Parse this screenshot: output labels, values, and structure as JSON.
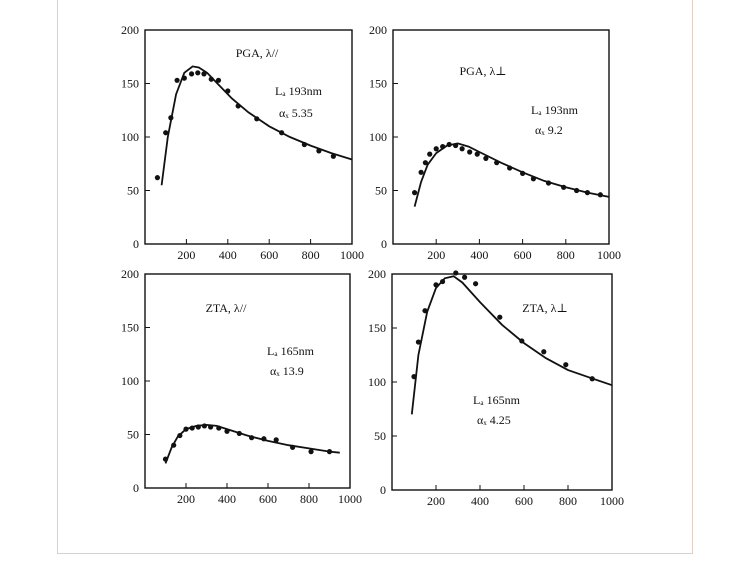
{
  "chart_data": [
    {
      "type": "scatter",
      "title": "PGA, λ//",
      "annotations": [
        "Lₐ 193nm",
        "αₓ 5.35"
      ],
      "xlim": [
        0,
        1000
      ],
      "ylim": [
        0,
        200
      ],
      "x_ticks": [
        200,
        400,
        600,
        800,
        1000
      ],
      "y_ticks": [
        0,
        50,
        100,
        150,
        200
      ],
      "points": {
        "x": [
          60,
          100,
          125,
          155,
          190,
          225,
          255,
          285,
          320,
          355,
          400,
          450,
          540,
          660,
          770,
          840,
          910
        ],
        "y": [
          62,
          104,
          118,
          153,
          155,
          159,
          160,
          159,
          154,
          153,
          143,
          129,
          117,
          104,
          93,
          87,
          82
        ]
      },
      "fit": {
        "x": [
          80,
          110,
          150,
          190,
          230,
          260,
          300,
          350,
          420,
          500,
          600,
          700,
          800,
          900,
          1000
        ],
        "y": [
          55,
          100,
          140,
          160,
          166,
          165,
          160,
          150,
          136,
          123,
          110,
          100,
          92,
          85,
          79
        ]
      }
    },
    {
      "type": "scatter",
      "title": "PGA, λ⊥",
      "annotations": [
        "Lₐ 193nm",
        "αₓ 9.2"
      ],
      "xlim": [
        0,
        1000
      ],
      "ylim": [
        0,
        200
      ],
      "x_ticks": [
        200,
        400,
        600,
        800,
        1000
      ],
      "y_ticks": [
        0,
        50,
        100,
        150,
        200
      ],
      "points": {
        "x": [
          100,
          130,
          150,
          170,
          200,
          230,
          260,
          290,
          320,
          355,
          390,
          430,
          480,
          540,
          600,
          650,
          720,
          790,
          850,
          900,
          960
        ],
        "y": [
          48,
          67,
          76,
          84,
          89,
          91,
          93,
          92,
          89,
          86,
          84,
          80,
          76,
          71,
          66,
          61,
          57,
          53,
          50,
          48,
          46
        ]
      },
      "fit": {
        "x": [
          100,
          130,
          160,
          200,
          250,
          300,
          350,
          400,
          500,
          600,
          700,
          800,
          900,
          1000
        ],
        "y": [
          35,
          58,
          74,
          85,
          92,
          94,
          91,
          86,
          76,
          67,
          59,
          53,
          48,
          44
        ]
      }
    },
    {
      "type": "scatter",
      "title": "ZTA, λ//",
      "annotations": [
        "Lₐ 165nm",
        "αₓ 13.9"
      ],
      "xlim": [
        0,
        1000
      ],
      "ylim": [
        0,
        200
      ],
      "x_ticks": [
        200,
        400,
        600,
        800,
        1000
      ],
      "y_ticks": [
        0,
        50,
        100,
        150,
        200
      ],
      "points": {
        "x": [
          100,
          140,
          170,
          200,
          230,
          260,
          290,
          320,
          360,
          400,
          460,
          520,
          580,
          640,
          720,
          810,
          900
        ],
        "y": [
          27,
          40,
          49,
          55,
          56,
          57,
          58,
          57,
          56,
          53,
          51,
          47,
          46,
          45,
          38,
          34,
          34
        ]
      },
      "fit": {
        "x": [
          100,
          130,
          160,
          200,
          250,
          300,
          350,
          400,
          500,
          600,
          700,
          800,
          900,
          950
        ],
        "y": [
          23,
          38,
          48,
          55,
          58,
          59,
          58,
          55,
          49,
          44,
          40,
          37,
          34,
          33
        ]
      }
    },
    {
      "type": "scatter",
      "title": "ZTA, λ⊥",
      "annotations": [
        "Lₐ 165nm",
        "αₓ 4.25"
      ],
      "xlim": [
        0,
        1000
      ],
      "ylim": [
        0,
        200
      ],
      "x_ticks": [
        200,
        400,
        600,
        800,
        1000
      ],
      "y_ticks": [
        0,
        50,
        100,
        150,
        200
      ],
      "points": {
        "x": [
          100,
          120,
          150,
          200,
          230,
          290,
          330,
          380,
          490,
          590,
          690,
          790,
          910
        ],
        "y": [
          105,
          137,
          166,
          190,
          193,
          201,
          197,
          191,
          160,
          138,
          128,
          116,
          103
        ]
      },
      "fit": {
        "x": [
          90,
          120,
          160,
          200,
          240,
          280,
          320,
          360,
          400,
          500,
          600,
          700,
          800,
          900,
          1000
        ],
        "y": [
          70,
          125,
          165,
          187,
          196,
          198,
          192,
          183,
          174,
          153,
          136,
          122,
          111,
          104,
          97
        ]
      }
    }
  ]
}
